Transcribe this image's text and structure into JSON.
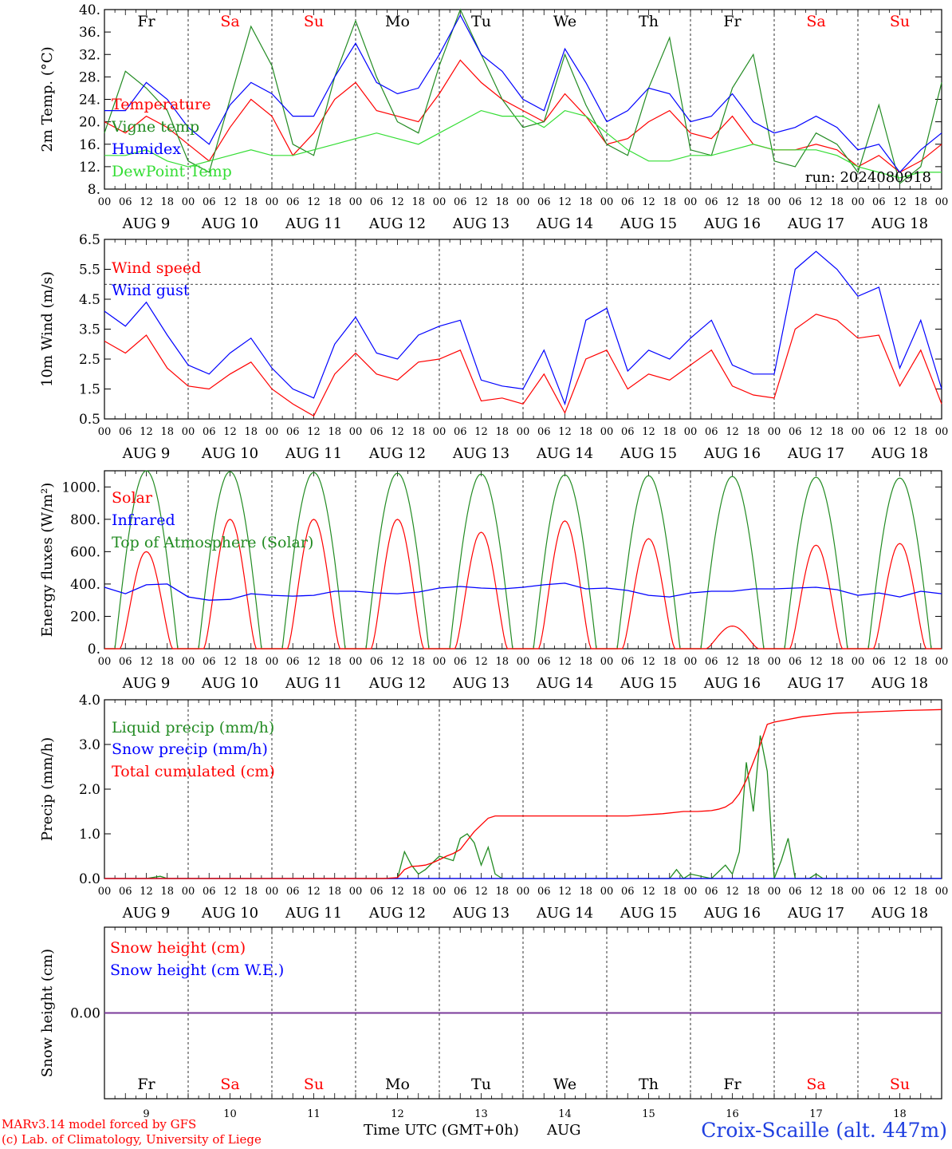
{
  "run_label": "run: 2024080918",
  "colors": {
    "red": "#ff0000",
    "green": "#228b22",
    "blue": "#0000ff",
    "lightgreen": "#33dd33",
    "purple": "#7a3a9a",
    "weekend": "#ff0000",
    "weekday": "#000000"
  },
  "days": [
    {
      "dow": "Fr",
      "date": "AUG  9",
      "num": "9",
      "weekend": false
    },
    {
      "dow": "Sa",
      "date": "AUG 10",
      "num": "10",
      "weekend": true
    },
    {
      "dow": "Su",
      "date": "AUG 11",
      "num": "11",
      "weekend": true
    },
    {
      "dow": "Mo",
      "date": "AUG 12",
      "num": "12",
      "weekend": false
    },
    {
      "dow": "Tu",
      "date": "AUG 13",
      "num": "13",
      "weekend": false
    },
    {
      "dow": "We",
      "date": "AUG 14",
      "num": "14",
      "weekend": false
    },
    {
      "dow": "Th",
      "date": "AUG 15",
      "num": "15",
      "weekend": false
    },
    {
      "dow": "Fr",
      "date": "AUG 16",
      "num": "16",
      "weekend": false
    },
    {
      "dow": "Sa",
      "date": "AUG 17",
      "num": "17",
      "weekend": true
    },
    {
      "dow": "Su",
      "date": "AUG 18",
      "num": "18",
      "weekend": true
    }
  ],
  "hour_ticks": [
    "00",
    "06",
    "12",
    "18"
  ],
  "chart_data": [
    {
      "type": "line",
      "ylabel": "2m Temp. (°C)",
      "ylim": [
        8,
        40
      ],
      "yticks": [
        "8.",
        "12.",
        "16.",
        "20.",
        "24.",
        "28.",
        "32.",
        "36.",
        "40."
      ],
      "ytick_values": [
        8,
        12,
        16,
        20,
        24,
        28,
        32,
        36,
        40
      ],
      "x_unit": "hours since AUG 9 00 UTC",
      "xlim": [
        0,
        240
      ],
      "series": [
        {
          "name": "Temperature",
          "color": "#ff0000",
          "x": [
            0,
            6,
            12,
            18,
            24,
            30,
            36,
            42,
            48,
            54,
            60,
            66,
            72,
            78,
            84,
            90,
            96,
            102,
            108,
            114,
            120,
            126,
            132,
            138,
            144,
            150,
            156,
            162,
            168,
            174,
            180,
            186,
            192,
            198,
            204,
            210,
            216,
            222,
            228,
            234,
            240
          ],
          "y": [
            20,
            18,
            21,
            19,
            16,
            13,
            19,
            24,
            21,
            14,
            18,
            24,
            27,
            22,
            21,
            20,
            25,
            31,
            27,
            24,
            22,
            20,
            25,
            21,
            16,
            17,
            20,
            22,
            18,
            17,
            21,
            16,
            15,
            15,
            16,
            15,
            12,
            14,
            11,
            13,
            16
          ]
        },
        {
          "name": "Vigne temp",
          "color": "#228b22",
          "x": [
            0,
            6,
            12,
            18,
            24,
            30,
            36,
            42,
            48,
            54,
            60,
            66,
            72,
            78,
            84,
            90,
            96,
            102,
            108,
            114,
            120,
            126,
            132,
            138,
            144,
            150,
            156,
            162,
            168,
            174,
            180,
            186,
            192,
            198,
            204,
            210,
            216,
            222,
            228,
            234,
            240
          ],
          "y": [
            18,
            29,
            26,
            22,
            13,
            11,
            24,
            37,
            30,
            16,
            14,
            28,
            38,
            28,
            20,
            18,
            30,
            40,
            32,
            24,
            19,
            20,
            32,
            23,
            16,
            14,
            26,
            35,
            15,
            14,
            26,
            32,
            13,
            12,
            18,
            16,
            11,
            23,
            9,
            12,
            27
          ]
        },
        {
          "name": "Humidex",
          "color": "#0000ff",
          "x": [
            0,
            6,
            12,
            18,
            24,
            30,
            36,
            42,
            48,
            54,
            60,
            66,
            72,
            78,
            84,
            90,
            96,
            102,
            108,
            114,
            120,
            126,
            132,
            138,
            144,
            150,
            156,
            162,
            168,
            174,
            180,
            186,
            192,
            198,
            204,
            210,
            216,
            222,
            228,
            234,
            240
          ],
          "y": [
            22,
            22,
            27,
            24,
            19,
            16,
            23,
            27,
            25,
            21,
            21,
            28,
            34,
            27,
            25,
            26,
            32,
            39,
            32,
            29,
            24,
            22,
            33,
            27,
            20,
            22,
            26,
            25,
            20,
            21,
            25,
            20,
            18,
            19,
            21,
            19,
            15,
            16,
            11,
            15,
            18
          ]
        },
        {
          "name": "DewPoint Temp",
          "color": "#33dd33",
          "x": [
            0,
            6,
            12,
            18,
            24,
            30,
            36,
            42,
            48,
            54,
            60,
            66,
            72,
            78,
            84,
            90,
            96,
            102,
            108,
            114,
            120,
            126,
            132,
            138,
            144,
            150,
            156,
            162,
            168,
            174,
            180,
            186,
            192,
            198,
            204,
            210,
            216,
            222,
            228,
            234,
            240
          ],
          "y": [
            14,
            14,
            15,
            13,
            12,
            13,
            14,
            15,
            14,
            14,
            15,
            16,
            17,
            18,
            17,
            16,
            18,
            20,
            22,
            21,
            21,
            19,
            22,
            21,
            18,
            15,
            13,
            13,
            14,
            14,
            15,
            16,
            15,
            15,
            15,
            14,
            12,
            11,
            10,
            11,
            11
          ]
        }
      ]
    },
    {
      "type": "line",
      "ylabel": "10m Wind (m/s)",
      "ylim": [
        0.5,
        6.5
      ],
      "yticks": [
        "0.5",
        "1.5",
        "2.5",
        "3.5",
        "4.5",
        "5.5",
        "6.5"
      ],
      "ytick_values": [
        0.5,
        1.5,
        2.5,
        3.5,
        4.5,
        5.5,
        6.5
      ],
      "hline": 5.0,
      "x_unit": "hours since AUG 9 00 UTC",
      "xlim": [
        0,
        240
      ],
      "series": [
        {
          "name": "Wind speed",
          "color": "#ff0000",
          "x": [
            0,
            6,
            12,
            18,
            24,
            30,
            36,
            42,
            48,
            54,
            60,
            66,
            72,
            78,
            84,
            90,
            96,
            102,
            108,
            114,
            120,
            126,
            132,
            138,
            144,
            150,
            156,
            162,
            168,
            174,
            180,
            186,
            192,
            198,
            204,
            210,
            216,
            222,
            228,
            234,
            240
          ],
          "y": [
            3.1,
            2.7,
            3.3,
            2.2,
            1.6,
            1.5,
            2.0,
            2.4,
            1.5,
            1.0,
            0.6,
            2.0,
            2.7,
            2.0,
            1.8,
            2.4,
            2.5,
            2.8,
            1.1,
            1.2,
            1.0,
            2.0,
            0.7,
            2.5,
            2.8,
            1.5,
            2.0,
            1.8,
            2.3,
            2.8,
            1.6,
            1.3,
            1.2,
            3.5,
            4.0,
            3.8,
            3.2,
            3.3,
            1.6,
            2.8,
            1.0
          ]
        },
        {
          "name": "Wind gust",
          "color": "#0000ff",
          "x": [
            0,
            6,
            12,
            18,
            24,
            30,
            36,
            42,
            48,
            54,
            60,
            66,
            72,
            78,
            84,
            90,
            96,
            102,
            108,
            114,
            120,
            126,
            132,
            138,
            144,
            150,
            156,
            162,
            168,
            174,
            180,
            186,
            192,
            198,
            204,
            210,
            216,
            222,
            228,
            234,
            240
          ],
          "y": [
            4.1,
            3.6,
            4.4,
            3.3,
            2.3,
            2.0,
            2.7,
            3.2,
            2.2,
            1.5,
            1.2,
            3.0,
            3.9,
            2.7,
            2.5,
            3.3,
            3.6,
            3.8,
            1.8,
            1.6,
            1.5,
            2.8,
            1.0,
            3.8,
            4.2,
            2.1,
            2.8,
            2.5,
            3.2,
            3.8,
            2.3,
            2.0,
            2.0,
            5.5,
            6.1,
            5.5,
            4.6,
            4.9,
            2.2,
            3.8,
            1.5
          ]
        }
      ]
    },
    {
      "type": "line",
      "ylabel": "Energy fluxes (W/m²)",
      "ylim": [
        0,
        1100
      ],
      "yticks": [
        "0.",
        "200.",
        "400.",
        "600.",
        "800.",
        "1000."
      ],
      "ytick_values": [
        0,
        200,
        400,
        600,
        800,
        1000
      ],
      "x_unit": "hours since AUG 9 00 UTC",
      "xlim": [
        0,
        240
      ],
      "solar_peaks": [
        600,
        800,
        800,
        800,
        720,
        790,
        680,
        140,
        640,
        650
      ],
      "toa_peaks": [
        1100,
        1095,
        1090,
        1085,
        1080,
        1075,
        1070,
        1065,
        1060,
        1055
      ],
      "series": [
        {
          "name": "Solar",
          "color": "#ff0000",
          "x": [],
          "y": []
        },
        {
          "name": "Infrared",
          "color": "#0000ff",
          "x": [
            0,
            6,
            12,
            18,
            24,
            30,
            36,
            42,
            48,
            54,
            60,
            66,
            72,
            78,
            84,
            90,
            96,
            102,
            108,
            114,
            120,
            126,
            132,
            138,
            144,
            150,
            156,
            162,
            168,
            174,
            180,
            186,
            192,
            198,
            204,
            210,
            216,
            222,
            228,
            234,
            240
          ],
          "y": [
            380,
            340,
            395,
            400,
            320,
            300,
            305,
            340,
            330,
            325,
            330,
            355,
            355,
            345,
            340,
            350,
            375,
            385,
            375,
            370,
            380,
            395,
            405,
            370,
            375,
            360,
            330,
            320,
            345,
            355,
            355,
            370,
            370,
            375,
            380,
            365,
            330,
            345,
            320,
            355,
            340
          ]
        },
        {
          "name": "Top of Atmosphere (Solar)",
          "color": "#228b22",
          "x": [],
          "y": []
        }
      ]
    },
    {
      "type": "line",
      "ylabel": "Precip (mm/h)",
      "ylim": [
        0,
        4
      ],
      "yticks": [
        "0.0",
        "1.0",
        "2.0",
        "3.0",
        "4.0"
      ],
      "ytick_values": [
        0,
        1,
        2,
        3,
        4
      ],
      "x_unit": "hours since AUG 9 00 UTC",
      "xlim": [
        0,
        240
      ],
      "series": [
        {
          "name": "Liquid precip (mm/h)",
          "color": "#228b22",
          "x": [
            0,
            6,
            12,
            16,
            18,
            24,
            84,
            86,
            88,
            90,
            92,
            96,
            100,
            102,
            104,
            106,
            108,
            110,
            112,
            114,
            120,
            126,
            132,
            138,
            144,
            150,
            156,
            162,
            164,
            166,
            168,
            174,
            178,
            180,
            182,
            184,
            186,
            188,
            190,
            192,
            194,
            196,
            198,
            200,
            202,
            204,
            206,
            210,
            216,
            222,
            228,
            234,
            240
          ],
          "y": [
            0,
            0,
            0,
            0.05,
            0,
            0,
            0,
            0.6,
            0.3,
            0.1,
            0.2,
            0.5,
            0.4,
            0.9,
            1.0,
            0.8,
            0.3,
            0.7,
            0.1,
            0,
            0,
            0,
            0,
            0,
            0,
            0,
            0,
            0,
            0.2,
            0,
            0.1,
            0,
            0.3,
            0.1,
            0.6,
            2.6,
            1.5,
            3.2,
            2.4,
            0,
            0.4,
            0.9,
            0,
            0,
            0,
            0.1,
            0,
            0,
            0,
            0,
            0,
            0,
            0
          ]
        },
        {
          "name": "Snow precip (mm/h)",
          "color": "#0000ff",
          "x": [
            0,
            240
          ],
          "y": [
            0,
            0
          ]
        },
        {
          "name": "Total cumulated (cm)",
          "color": "#ff0000",
          "x": [
            0,
            80,
            84,
            86,
            88,
            90,
            92,
            94,
            96,
            98,
            100,
            102,
            104,
            106,
            108,
            110,
            112,
            120,
            130,
            140,
            150,
            160,
            166,
            170,
            174,
            176,
            178,
            180,
            182,
            184,
            186,
            188,
            190,
            192,
            200,
            210,
            220,
            230,
            240
          ],
          "y": [
            0,
            0,
            0.02,
            0.2,
            0.27,
            0.28,
            0.3,
            0.35,
            0.42,
            0.5,
            0.56,
            0.65,
            0.85,
            1.05,
            1.2,
            1.35,
            1.4,
            1.4,
            1.4,
            1.4,
            1.4,
            1.45,
            1.5,
            1.5,
            1.52,
            1.55,
            1.6,
            1.7,
            1.9,
            2.2,
            2.6,
            3.0,
            3.45,
            3.5,
            3.62,
            3.7,
            3.73,
            3.76,
            3.78
          ]
        }
      ]
    },
    {
      "type": "line",
      "ylabel": "Snow height (cm)",
      "ylim": [
        -1,
        1
      ],
      "yticks": [
        "0.00"
      ],
      "ytick_values": [
        0
      ],
      "x_unit": "hours since AUG 9 00 UTC",
      "xlim": [
        0,
        240
      ],
      "series": [
        {
          "name": "Snow height (cm)",
          "color": "#ff0000",
          "x": [
            0,
            240
          ],
          "y": [
            0,
            0
          ]
        },
        {
          "name": "Snow height (cm W.E.)",
          "color": "#0000ff",
          "x": [
            0,
            240
          ],
          "y": [
            0,
            0
          ]
        }
      ]
    }
  ],
  "footer": {
    "model": "MARv3.14 model forced by GFS",
    "copyright": "(c) Lab. of Climatology, University of Liege",
    "axis_title": "Time UTC (GMT+0h)",
    "month": "AUG",
    "station": "Croix-Scaille (alt. 447m)"
  }
}
